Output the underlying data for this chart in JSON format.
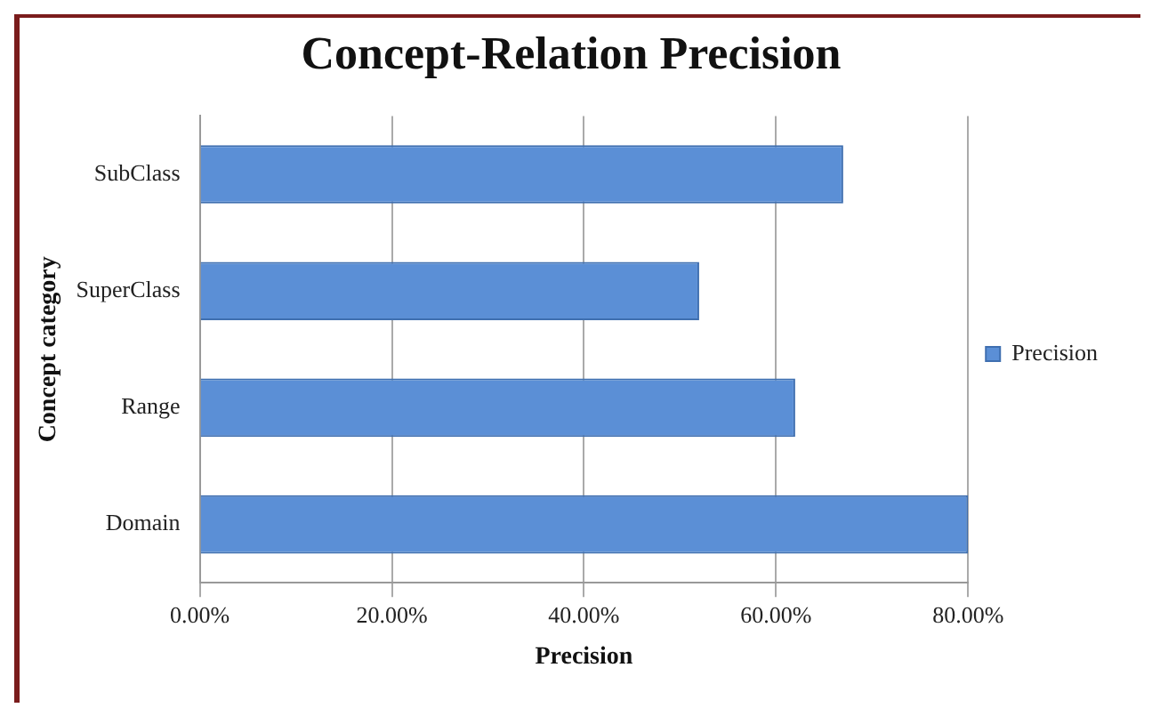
{
  "chart_data": {
    "type": "bar",
    "orientation": "horizontal",
    "title": "Concept-Relation Precision",
    "xlabel": "Precision",
    "ylabel": "Concept category",
    "categories": [
      "SubClass",
      "SuperClass",
      "Range",
      "Domain"
    ],
    "series": [
      {
        "name": "Precision",
        "color": "#5b8fd6",
        "values": [
          67,
          52,
          62,
          80
        ]
      }
    ],
    "xlim": [
      0,
      80
    ],
    "xticks": [
      {
        "value": 0,
        "label": "0.00%"
      },
      {
        "value": 20,
        "label": "20.00%"
      },
      {
        "value": 40,
        "label": "40.00%"
      },
      {
        "value": 60,
        "label": "60.00%"
      },
      {
        "value": 80,
        "label": "80.00%"
      }
    ],
    "grid": "x",
    "legend": "right"
  }
}
